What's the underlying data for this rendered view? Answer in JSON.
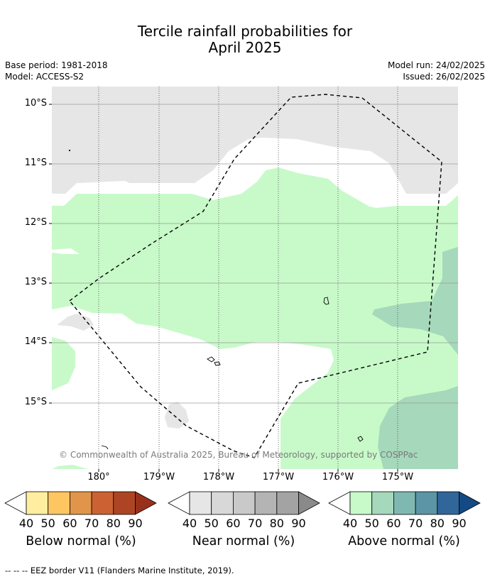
{
  "title_line1": "Tercile rainfall probabilities for",
  "title_line2": "April 2025",
  "base_period": "Base period: 1981-2018",
  "model": "Model: ACCESS-S2",
  "model_run": "Model run: 24/02/2025",
  "issued": "Issued: 26/02/2025",
  "copyright": "© Commonwealth of Australia 2025, Bureau of Meteorology, supported by COSPPac",
  "lat_labels": [
    "10°S",
    "11°S",
    "12°S",
    "13°S",
    "14°S",
    "15°S"
  ],
  "lon_labels": [
    "180°",
    "179°W",
    "178°W",
    "177°W",
    "176°W",
    "175°W"
  ],
  "colorbars": [
    {
      "title": "Below normal (%)",
      "ticks": [
        "40",
        "50",
        "60",
        "70",
        "80",
        "90"
      ],
      "colors": [
        "#ffeda0",
        "#fec660",
        "#e0954a",
        "#cc6233",
        "#ad4525",
        "#99311a"
      ]
    },
    {
      "title": "Near normal (%)",
      "ticks": [
        "40",
        "50",
        "60",
        "70",
        "80",
        "90"
      ],
      "colors": [
        "#e6e6e6",
        "#d8d8d8",
        "#c9c9c9",
        "#b4b4b4",
        "#a3a3a3",
        "#8a8a8a"
      ]
    },
    {
      "title": "Above normal (%)",
      "ticks": [
        "40",
        "50",
        "60",
        "70",
        "80",
        "90"
      ],
      "colors": [
        "#c8fac9",
        "#a6d8bb",
        "#7fb8b1",
        "#5b95a6",
        "#31669b",
        "#134a84"
      ]
    }
  ],
  "footer": "--  --  -- EEZ border V11 (Flanders Marine Institute, 2019)."
}
